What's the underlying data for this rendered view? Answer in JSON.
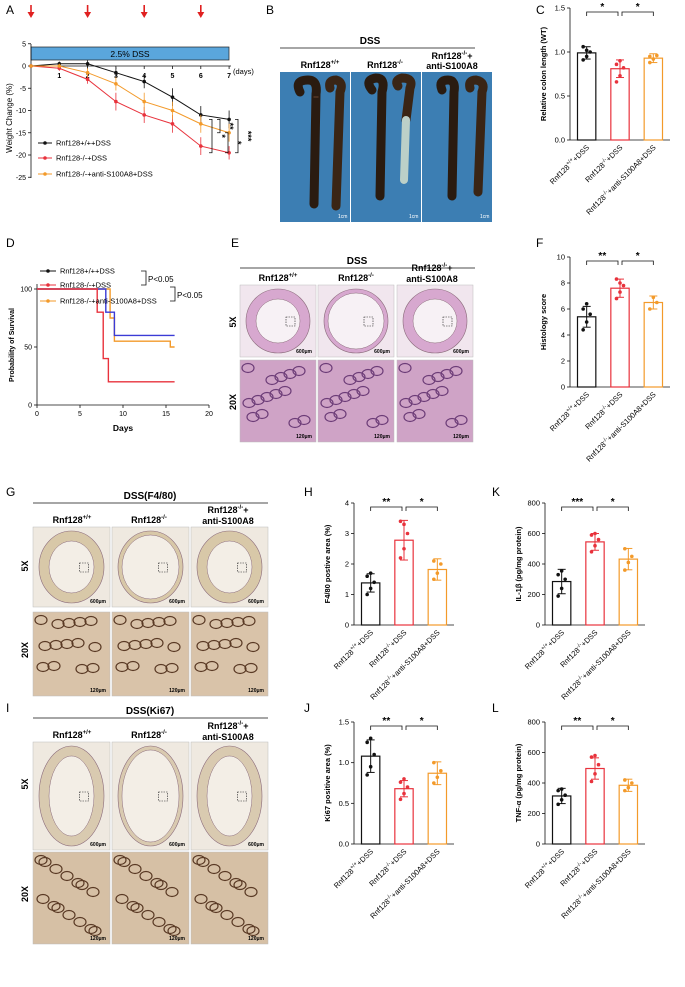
{
  "colors": {
    "wt": "#111111",
    "ko": "#e8323c",
    "anti": "#f39a2a",
    "anti_survival": "#3b3bd6",
    "dss_bar": "#5aa6dc",
    "he_tissue": "#d7a8cf",
    "ihc_bg": "#e8ddd2"
  },
  "panels": {
    "A": "A",
    "B": "B",
    "C": "C",
    "D": "D",
    "E": "E",
    "F": "F",
    "G": "G",
    "H": "H",
    "I": "I",
    "J": "J",
    "K": "K",
    "L": "L"
  },
  "groups": {
    "wt_dss": "Rnf128+/++DSS",
    "ko_dss": "Rnf128-/-+DSS",
    "anti_dss": "Rnf128-/-+anti-S100A8+DSS",
    "wt": "Rnf128+/+",
    "ko": "Rnf128-/-",
    "anti_line1": "Rnf128-/-+",
    "anti_line2": "anti-S100A8"
  },
  "panel_b": {
    "title": "DSS",
    "scale": "1cm"
  },
  "panel_e": {
    "title": "DSS",
    "row1": "5X",
    "row2": "20X",
    "scale_5x": "600μm",
    "scale_20x": "120μm"
  },
  "panel_g": {
    "title": "DSS(F4/80)",
    "row1": "5X",
    "row2": "20X",
    "scale_5x": "600μm",
    "scale_20x": "120μm"
  },
  "panel_i": {
    "title": "DSS(Ki67)",
    "row1": "5X",
    "row2": "20X",
    "scale_5x": "600μm",
    "scale_20x": "120μm"
  },
  "chart_data": [
    {
      "id": "A",
      "type": "line",
      "title": "",
      "xlabel": "(days)",
      "ylabel": "Weight Change (%)",
      "treatment_bar": "2.5% DSS",
      "x": [
        0,
        1,
        2,
        3,
        4,
        5,
        6,
        7
      ],
      "xticks": [
        "1",
        "2",
        "3",
        "4",
        "5",
        "6",
        "7"
      ],
      "yticks": [
        "5",
        "0",
        "-5",
        "-10",
        "-15",
        "-20",
        "-25"
      ],
      "ylim": [
        -25,
        5
      ],
      "injection_days": [
        0,
        2,
        4,
        6
      ],
      "significance": [
        "*",
        "**",
        "*",
        "***"
      ],
      "series": [
        {
          "name": "Rnf128+/++DSS",
          "values": [
            0,
            0.5,
            0.5,
            -1.5,
            -3.5,
            -7,
            -11,
            -12
          ]
        },
        {
          "name": "Rnf128-/-+DSS",
          "values": [
            0,
            -0.5,
            -3,
            -8,
            -11,
            -13,
            -18,
            -19.5
          ]
        },
        {
          "name": "Rnf128-/-+anti-S100A8+DSS",
          "values": [
            0,
            0,
            -1.5,
            -4,
            -8,
            -10,
            -13,
            -15
          ]
        }
      ]
    },
    {
      "id": "C",
      "type": "bar",
      "ylabel": "Relative colon length (WT)",
      "ylim": [
        0,
        1.5
      ],
      "yticks": [
        "0.0",
        "0.5",
        "1.0",
        "1.5"
      ],
      "significance": [
        "*",
        "*"
      ],
      "categories": [
        "Rnf128+/++DSS",
        "Rnf128-/-+DSS",
        "Rnf128-/-+anti-S100A8+DSS"
      ],
      "values": [
        0.99,
        0.81,
        0.93
      ],
      "errors": [
        0.07,
        0.1,
        0.05
      ],
      "points": [
        [
          0.91,
          0.95,
          1.0,
          1.06,
          1.02
        ],
        [
          0.66,
          0.73,
          0.82,
          0.86,
          0.9
        ],
        [
          0.88,
          0.92,
          0.96,
          0.95
        ]
      ]
    },
    {
      "id": "D",
      "type": "line",
      "ylabel": "Probability of Survival",
      "xlabel": "Days",
      "xlim": [
        0,
        20
      ],
      "ylim": [
        0,
        100
      ],
      "xticks": [
        "0",
        "5",
        "10",
        "15",
        "20"
      ],
      "yticks": [
        "0",
        "50",
        "100"
      ],
      "pvalues": [
        "P<0.05",
        "P<0.05"
      ],
      "series": [
        {
          "name": "Rnf128+/++DSS",
          "steps": [
            [
              0,
              100
            ],
            [
              8,
              100
            ],
            [
              8,
              80
            ],
            [
              9,
              80
            ],
            [
              9,
              60
            ],
            [
              16,
              60
            ]
          ]
        },
        {
          "name": "Rnf128-/-+DSS",
          "steps": [
            [
              0,
              100
            ],
            [
              7,
              100
            ],
            [
              7,
              80
            ],
            [
              7.7,
              80
            ],
            [
              7.7,
              40
            ],
            [
              8.3,
              40
            ],
            [
              8.3,
              20
            ],
            [
              16,
              20
            ]
          ]
        },
        {
          "name": "Rnf128-/-+anti-S100A8+DSS",
          "steps": [
            [
              0,
              100
            ],
            [
              8.5,
              100
            ],
            [
              8.5,
              75
            ],
            [
              9,
              75
            ],
            [
              9,
              55
            ],
            [
              15.5,
              55
            ],
            [
              15.5,
              50
            ],
            [
              16,
              50
            ]
          ]
        }
      ]
    },
    {
      "id": "F",
      "type": "bar",
      "ylabel": "Histology score",
      "ylim": [
        0,
        10
      ],
      "yticks": [
        "0",
        "2",
        "4",
        "6",
        "8",
        "10"
      ],
      "significance": [
        "**",
        "*"
      ],
      "categories": [
        "Rnf128+/++DSS",
        "Rnf128-/-+DSS",
        "Rnf128-/-+anti-S100A8+DSS"
      ],
      "values": [
        5.4,
        7.6,
        6.5
      ],
      "errors": [
        0.8,
        0.7,
        0.5
      ],
      "points": [
        [
          4.4,
          5.0,
          5.6,
          6.0,
          6.4
        ],
        [
          6.8,
          7.3,
          7.8,
          8.3,
          8.0
        ],
        [
          6.0,
          6.9,
          6.5
        ]
      ]
    },
    {
      "id": "H",
      "type": "bar",
      "ylabel": "F4/80 postive area (%)",
      "ylim": [
        0,
        4
      ],
      "yticks": [
        "0",
        "1",
        "2",
        "3",
        "4"
      ],
      "significance": [
        "**",
        "*"
      ],
      "categories": [
        "Rnf128+/++DSS",
        "Rnf128-/-+DSS",
        "Rnf128-/-+anti-S100A8+DSS"
      ],
      "values": [
        1.38,
        2.78,
        1.82
      ],
      "errors": [
        0.3,
        0.65,
        0.35
      ],
      "points": [
        [
          1.0,
          1.2,
          1.4,
          1.6,
          1.7
        ],
        [
          2.2,
          2.5,
          3.0,
          3.4,
          3.3
        ],
        [
          1.5,
          1.7,
          2.0,
          2.1
        ]
      ]
    },
    {
      "id": "K",
      "type": "bar",
      "ylabel": "IL-1β (pg/mg protein)",
      "ylim": [
        0,
        800
      ],
      "yticks": [
        "0",
        "200",
        "400",
        "600",
        "800"
      ],
      "significance": [
        "***",
        "*"
      ],
      "categories": [
        "Rnf128+/++DSS",
        "Rnf128-/-+DSS",
        "Rnf128-/-+anti-S100A8+DSS"
      ],
      "values": [
        285,
        545,
        432
      ],
      "errors": [
        80,
        55,
        70
      ],
      "points": [
        [
          190,
          240,
          300,
          330,
          355
        ],
        [
          480,
          520,
          560,
          590,
          600
        ],
        [
          360,
          410,
          450,
          500
        ]
      ]
    },
    {
      "id": "J",
      "type": "bar",
      "ylabel": "Ki67 positive area (%)",
      "ylim": [
        0,
        1.5
      ],
      "yticks": [
        "0.0",
        "0.5",
        "1.0",
        "1.5"
      ],
      "significance": [
        "**",
        "*"
      ],
      "categories": [
        "Rnf128+/++DSS",
        "Rnf128-/-+DSS",
        "Rnf128-/-+anti-S100A8+DSS"
      ],
      "values": [
        1.08,
        0.68,
        0.87
      ],
      "errors": [
        0.2,
        0.1,
        0.14
      ],
      "points": [
        [
          0.85,
          0.95,
          1.1,
          1.25,
          1.3
        ],
        [
          0.55,
          0.62,
          0.7,
          0.76,
          0.8
        ],
        [
          0.75,
          0.82,
          0.9,
          1.0
        ]
      ]
    },
    {
      "id": "L",
      "type": "bar",
      "ylabel": "TNF-α (pg/mg protein)",
      "ylim": [
        0,
        800
      ],
      "yticks": [
        "0",
        "200",
        "400",
        "600",
        "800"
      ],
      "significance": [
        "**",
        "*"
      ],
      "categories": [
        "Rnf128+/++DSS",
        "Rnf128-/-+DSS",
        "Rnf128-/-+anti-S100A8+DSS"
      ],
      "values": [
        315,
        495,
        385
      ],
      "errors": [
        50,
        70,
        40
      ],
      "points": [
        [
          260,
          290,
          320,
          350,
          360
        ],
        [
          410,
          460,
          520,
          570,
          580
        ],
        [
          350,
          370,
          400,
          420
        ]
      ]
    }
  ]
}
